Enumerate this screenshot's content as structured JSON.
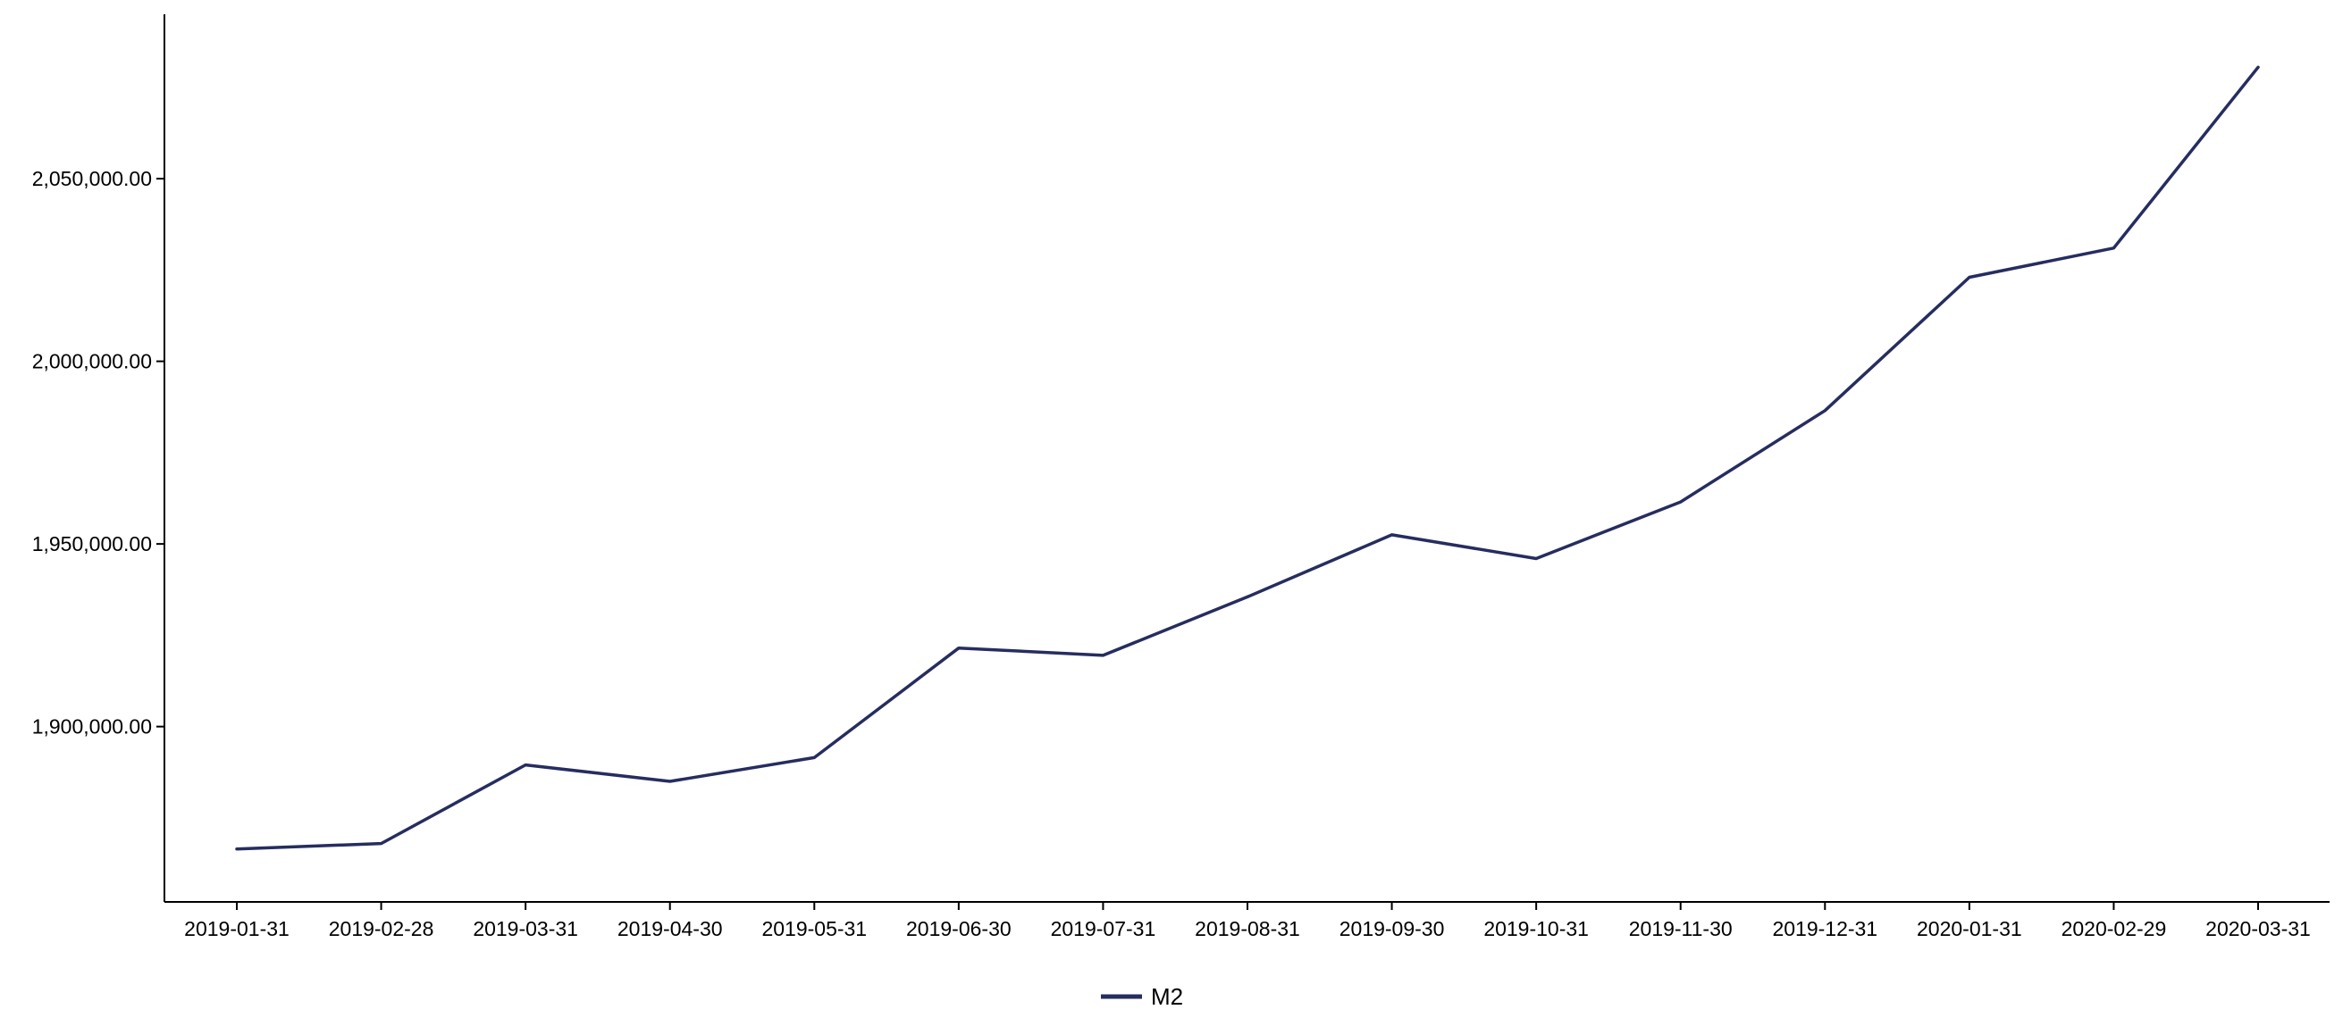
{
  "chart_data": {
    "type": "line",
    "title": "",
    "xlabel": "",
    "ylabel": "",
    "x": [
      "2019-01-31",
      "2019-02-28",
      "2019-03-31",
      "2019-04-30",
      "2019-05-31",
      "2019-06-30",
      "2019-07-31",
      "2019-08-31",
      "2019-09-30",
      "2019-10-31",
      "2019-11-30",
      "2019-12-31",
      "2020-01-31",
      "2020-02-29",
      "2020-03-31"
    ],
    "series": [
      {
        "name": "M2",
        "color": "#262d5f",
        "values": [
          1866500,
          1868000,
          1889500,
          1885000,
          1891500,
          1921500,
          1919500,
          1935500,
          1952500,
          1946000,
          1961500,
          1986500,
          2023000,
          2031000,
          2080500
        ]
      }
    ],
    "yticks": [
      1900000,
      1950000,
      2000000,
      2050000
    ],
    "ytick_labels": [
      "1,900,000.00",
      "1,950,000.00",
      "2,000,000.00",
      "2,050,000.00"
    ],
    "ylim": [
      1852000,
      2095000
    ],
    "grid": false,
    "legend": "bottom-center"
  }
}
